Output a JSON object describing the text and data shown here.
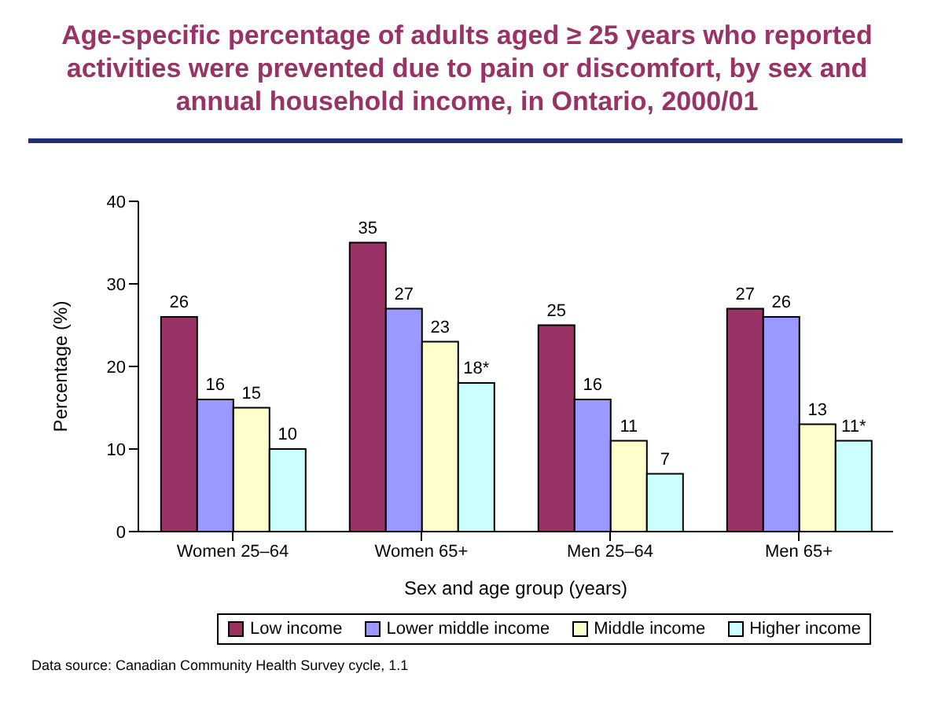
{
  "chart_data": {
    "type": "bar",
    "title": "Age-specific percentage of adults aged ≥ 25 years who reported activities were prevented due to pain or discomfort, by sex and annual household income, in Ontario, 2000/01",
    "xlabel": "Sex and age group (years)",
    "ylabel": "Percentage (%)",
    "categories": [
      "Women 25–64",
      "Women 65+",
      "Men 25–64",
      "Men 65+"
    ],
    "series": [
      {
        "name": "Low income",
        "color": "#993366",
        "values": [
          26,
          35,
          25,
          27
        ],
        "value_labels": [
          "26",
          "35",
          "25",
          "27"
        ]
      },
      {
        "name": "Lower middle income",
        "color": "#9999ff",
        "values": [
          16,
          27,
          16,
          26
        ],
        "value_labels": [
          "16",
          "27",
          "16",
          "26"
        ]
      },
      {
        "name": "Middle income",
        "color": "#ffffcc",
        "values": [
          15,
          23,
          11,
          13
        ],
        "value_labels": [
          "15",
          "23",
          "11",
          "13"
        ]
      },
      {
        "name": "Higher income",
        "color": "#ccffff",
        "values": [
          10,
          18,
          7,
          11
        ],
        "value_labels": [
          "10",
          "18*",
          "7",
          "11*"
        ]
      }
    ],
    "ylim": [
      0,
      40
    ],
    "yticks": [
      0,
      10,
      20,
      30,
      40
    ],
    "grid": false,
    "legend": "bottom",
    "annotations": [
      "Data source: Canadian Community Health Survey cycle, 1.1"
    ]
  }
}
